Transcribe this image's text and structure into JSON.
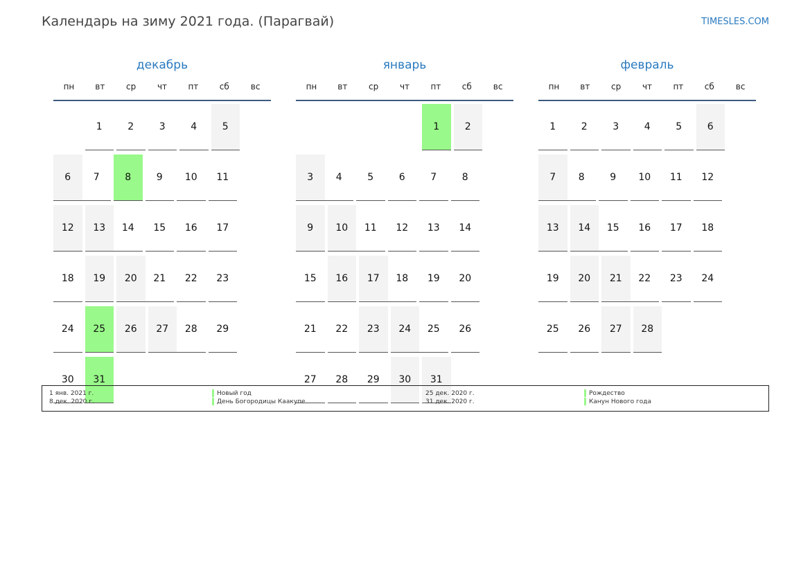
{
  "title": "Календарь на зиму 2021 года. (Парагвай)",
  "brand": "TIMESLES.COM",
  "weekdays": [
    "пн",
    "вт",
    "ср",
    "чт",
    "пт",
    "сб",
    "вс"
  ],
  "colors": {
    "accent": "#2a7abf",
    "holiday": "#99f98a",
    "weekend": "#f3f3f3"
  },
  "months": [
    {
      "name": "декабрь",
      "first_weekday": 1,
      "days": 31,
      "holidays": [
        8,
        25,
        31
      ]
    },
    {
      "name": "январь",
      "first_weekday": 4,
      "days": 31,
      "holidays": [
        1
      ]
    },
    {
      "name": "февраль",
      "first_weekday": 0,
      "days": 28,
      "holidays": []
    }
  ],
  "legend": [
    {
      "date": "1 янв. 2021 г.",
      "name": "Новый год"
    },
    {
      "date": "8 дек. 2020 г.",
      "name": "День Богородицы Каакупе"
    },
    {
      "date": "25 дек. 2020 г.",
      "name": "Рождество"
    },
    {
      "date": "31 дек. 2020 г.",
      "name": "Канун Нового года"
    }
  ]
}
